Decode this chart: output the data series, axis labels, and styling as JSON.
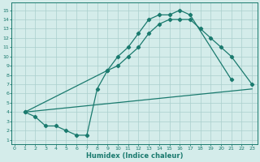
{
  "line1_x": [
    1,
    2,
    3,
    4,
    5,
    6,
    7,
    8,
    9,
    10,
    11,
    12,
    13,
    14,
    15,
    16,
    17,
    21
  ],
  "line1_y": [
    4,
    3.5,
    2.5,
    2.5,
    2,
    1.5,
    1.5,
    6.5,
    8.5,
    10,
    11,
    12.5,
    14,
    14.5,
    14.5,
    15,
    14.5,
    7.5
  ],
  "line2_x": [
    1,
    23
  ],
  "line2_y": [
    4,
    6.5
  ],
  "line3_x": [
    1,
    9,
    10,
    11,
    12,
    13,
    14,
    15,
    16,
    17,
    18,
    19,
    20,
    21,
    23
  ],
  "line3_y": [
    4,
    8.5,
    9,
    10,
    11,
    12.5,
    13.5,
    14,
    14,
    14,
    13,
    12,
    11,
    10,
    7
  ],
  "color": "#1a7a6e",
  "bg_color": "#d4ecea",
  "grid_color": "#aacfcc",
  "xlabel": "Humidex (Indice chaleur)",
  "ylabel_ticks": [
    1,
    2,
    3,
    4,
    5,
    6,
    7,
    8,
    9,
    10,
    11,
    12,
    13,
    14,
    15
  ],
  "xticks": [
    0,
    1,
    2,
    3,
    4,
    5,
    6,
    7,
    8,
    9,
    10,
    11,
    12,
    13,
    14,
    15,
    16,
    17,
    18,
    19,
    20,
    21,
    22,
    23
  ],
  "xlim": [
    -0.3,
    23.5
  ],
  "ylim": [
    0.5,
    15.8
  ],
  "marker": "D",
  "markersize": 2.2,
  "linewidth": 0.9
}
